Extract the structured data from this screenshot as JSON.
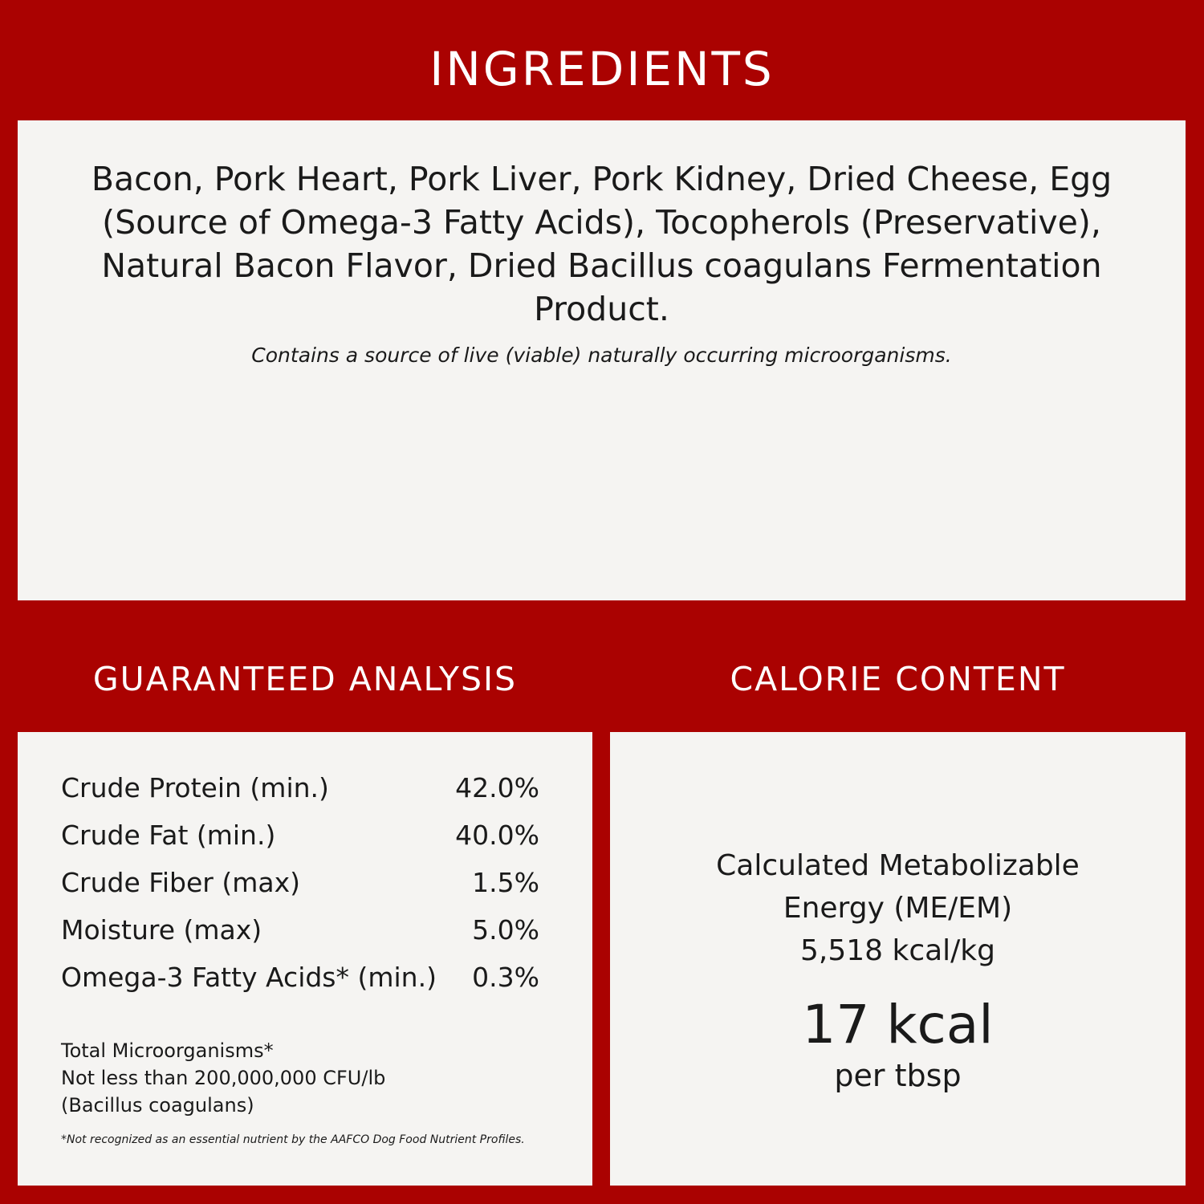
{
  "ingredients": {
    "title": "INGREDIENTS",
    "text": "Bacon, Pork Heart, Pork Liver, Pork Kidney, Dried Cheese, Egg (Source of Omega-3 Fatty Acids), Tocopherols (Preservative), Natural Bacon Flavor, Dried Bacillus coagulans Fermentation Product.",
    "note": "Contains a source of live (viable) naturally occurring microorganisms."
  },
  "analysis": {
    "title": "GUARANTEED ANALYSIS",
    "rows": [
      {
        "label": "Crude Protein (min.)",
        "value": "42.0%"
      },
      {
        "label": "Crude Fat (min.)",
        "value": "40.0%"
      },
      {
        "label": "Crude Fiber (max)",
        "value": "1.5%"
      },
      {
        "label": "Moisture (max)",
        "value": "5.0%"
      },
      {
        "label": "Omega-3 Fatty Acids* (min.)",
        "value": "0.3%"
      }
    ],
    "micro_line1": "Total Microorganisms*",
    "micro_line2": "Not less than 200,000,000 CFU/lb",
    "micro_line3": "(Bacillus coagulans)",
    "footnote": "*Not recognized as an essential nutrient by the AAFCO Dog Food Nutrient Profiles."
  },
  "calories": {
    "title": "CALORIE CONTENT",
    "line1": "Calculated Metabolizable",
    "line2": "Energy (ME/EM)",
    "line3": "5,518 kcal/kg",
    "big": "17 kcal",
    "per": "per tbsp"
  },
  "colors": {
    "brand_red": "#aa0201",
    "panel": "#f5f4f2"
  }
}
